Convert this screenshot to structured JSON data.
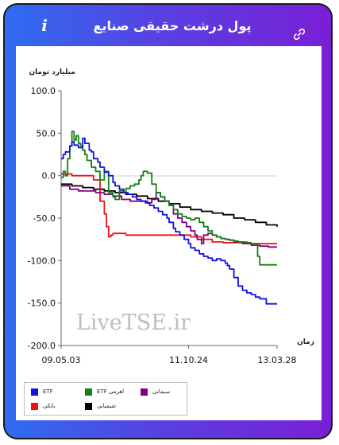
{
  "header": {
    "title": "پول درشت حقیقی صنایع",
    "info_icon": "info-icon",
    "edit_icon": "pencil-icon",
    "link_icon": "link-icon"
  },
  "watermark": "LiveTSE.ir",
  "colors": {
    "etf": "#1010e0",
    "etf_leveraged": "#128012",
    "cement": "#800080",
    "bank": "#ee1111",
    "chemical": "#000000"
  },
  "chart_data": {
    "type": "line",
    "ylabel": "میلیارد تومان",
    "xlabel": "زمان",
    "ylim": [
      -200,
      100
    ],
    "yticks": [
      100,
      50,
      0,
      -50,
      -100,
      -150,
      -200
    ],
    "ytick_labels": [
      "100.0",
      "50.0",
      "0.0",
      "-50.0",
      "-100.0",
      "-150.0",
      "-200.0"
    ],
    "xticks": [
      "09.05.03",
      "11.10.24",
      "13.03.28"
    ],
    "grid": false,
    "legend_position": "bottom-left",
    "series": [
      {
        "name": "ETF",
        "color": "#1010e0",
        "x": [
          0,
          0.01,
          0.02,
          0.04,
          0.05,
          0.06,
          0.08,
          0.1,
          0.11,
          0.13,
          0.14,
          0.15,
          0.17,
          0.18,
          0.2,
          0.22,
          0.24,
          0.25,
          0.27,
          0.29,
          0.31,
          0.33,
          0.35,
          0.37,
          0.39,
          0.41,
          0.43,
          0.45,
          0.47,
          0.49,
          0.5,
          0.52,
          0.53,
          0.55,
          0.57,
          0.59,
          0.6,
          0.62,
          0.64,
          0.66,
          0.68,
          0.7,
          0.72,
          0.74,
          0.76,
          0.77,
          0.78,
          0.8,
          0.82,
          0.84,
          0.86,
          0.88,
          0.9,
          0.92,
          0.95,
          1.0
        ],
        "y": [
          20,
          25,
          28,
          35,
          40,
          36,
          33,
          44,
          38,
          30,
          28,
          20,
          16,
          10,
          4,
          0,
          -8,
          -12,
          -16,
          -20,
          -22,
          -25,
          -28,
          -30,
          -32,
          -35,
          -38,
          -42,
          -46,
          -50,
          -55,
          -62,
          -66,
          -70,
          -75,
          -80,
          -85,
          -88,
          -92,
          -95,
          -97,
          -100,
          -98,
          -100,
          -103,
          -106,
          -110,
          -120,
          -130,
          -135,
          -138,
          -140,
          -143,
          -145,
          -151,
          -151
        ]
      },
      {
        "name": "ETF اهرمی",
        "color": "#128012",
        "x": [
          0,
          0.01,
          0.02,
          0.03,
          0.04,
          0.05,
          0.06,
          0.07,
          0.08,
          0.09,
          0.1,
          0.11,
          0.12,
          0.14,
          0.16,
          0.18,
          0.2,
          0.22,
          0.24,
          0.25,
          0.27,
          0.29,
          0.3,
          0.32,
          0.34,
          0.36,
          0.37,
          0.38,
          0.4,
          0.42,
          0.44,
          0.46,
          0.48,
          0.5,
          0.52,
          0.54,
          0.56,
          0.58,
          0.6,
          0.62,
          0.64,
          0.66,
          0.68,
          0.7,
          0.72,
          0.74,
          0.76,
          0.78,
          0.8,
          0.82,
          0.84,
          0.86,
          0.88,
          0.9,
          0.91,
          0.92,
          0.95,
          1.0
        ],
        "y": [
          -2,
          5,
          0,
          20,
          35,
          52,
          42,
          47,
          38,
          35,
          30,
          25,
          18,
          10,
          5,
          -5,
          5,
          -20,
          -25,
          -28,
          -18,
          -20,
          -15,
          -12,
          -10,
          -5,
          0,
          5,
          3,
          -10,
          -20,
          -25,
          -30,
          -35,
          -40,
          -45,
          -48,
          -50,
          -52,
          -50,
          -55,
          -60,
          -65,
          -70,
          -72,
          -74,
          -75,
          -76,
          -77,
          -78,
          -78,
          -79,
          -80,
          -80,
          -95,
          -105,
          -105,
          -105
        ]
      },
      {
        "name": "سیمانی",
        "color": "#800080",
        "x": [
          0,
          0.04,
          0.08,
          0.12,
          0.16,
          0.2,
          0.24,
          0.28,
          0.32,
          0.36,
          0.4,
          0.42,
          0.44,
          0.46,
          0.48,
          0.5,
          0.52,
          0.54,
          0.56,
          0.58,
          0.6,
          0.62,
          0.63,
          0.65,
          0.66,
          0.68,
          0.7,
          0.72,
          0.74,
          0.76,
          0.78,
          0.8,
          0.84,
          0.88,
          0.92,
          0.96,
          1.0
        ],
        "y": [
          -12,
          -16,
          -18,
          -18,
          -20,
          -22,
          -24,
          -28,
          -30,
          -30,
          -32,
          -28,
          -20,
          -25,
          -30,
          -35,
          -45,
          -50,
          -55,
          -60,
          -65,
          -70,
          -75,
          -80,
          -70,
          -68,
          -70,
          -72,
          -74,
          -75,
          -76,
          -78,
          -80,
          -82,
          -83,
          -84,
          -84
        ]
      },
      {
        "name": "بانکی",
        "color": "#ee1111",
        "x": [
          0,
          0.05,
          0.1,
          0.15,
          0.18,
          0.2,
          0.2,
          0.21,
          0.22,
          0.23,
          0.24,
          0.3,
          0.35,
          0.4,
          0.45,
          0.5,
          0.55,
          0.6,
          0.65,
          0.7,
          0.75,
          0.8,
          0.85,
          0.9,
          0.95,
          1.0
        ],
        "y": [
          2,
          0,
          0,
          -5,
          -30,
          -35,
          -45,
          -60,
          -72,
          -70,
          -68,
          -70,
          -70,
          -70,
          -70,
          -70,
          -70,
          -72,
          -75,
          -78,
          -79,
          -79,
          -80,
          -80,
          -80,
          -80
        ]
      },
      {
        "name": "شیمیایی",
        "color": "#000000",
        "x": [
          0,
          0.05,
          0.1,
          0.15,
          0.2,
          0.25,
          0.3,
          0.35,
          0.4,
          0.45,
          0.5,
          0.55,
          0.6,
          0.65,
          0.7,
          0.75,
          0.8,
          0.85,
          0.9,
          0.95,
          1.0
        ],
        "y": [
          -10,
          -12,
          -14,
          -16,
          -18,
          -20,
          -22,
          -24,
          -27,
          -30,
          -33,
          -37,
          -40,
          -42,
          -44,
          -46,
          -50,
          -52,
          -55,
          -58,
          -60
        ]
      }
    ]
  }
}
